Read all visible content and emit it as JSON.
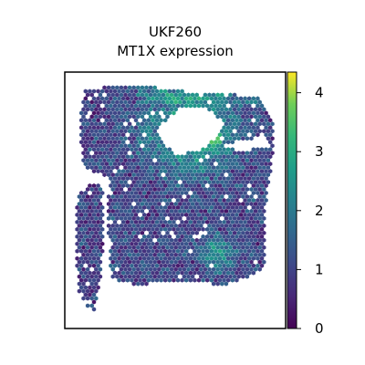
{
  "chart_data": {
    "type": "heatmap",
    "title": "UKF260",
    "subtitle": "MT1X expression",
    "xlabel": "",
    "ylabel": "",
    "colorbar": {
      "colormap": "viridis",
      "range": [
        0,
        4.35
      ],
      "ticks": [
        0,
        1,
        2,
        3,
        4
      ],
      "tick_labels": [
        "0",
        "1",
        "2",
        "3",
        "4"
      ]
    },
    "grid": false,
    "spot_shape": "hexagon",
    "regions": [
      {
        "name": "left strip",
        "mean_expression": 0.9
      },
      {
        "name": "main tissue body",
        "mean_expression": 1.1
      },
      {
        "name": "upper band around gap",
        "mean_expression": 2.4
      },
      {
        "name": "hotspot upper center",
        "mean_expression": 3.8
      },
      {
        "name": "lower right cluster",
        "mean_expression": 2.3
      }
    ]
  }
}
